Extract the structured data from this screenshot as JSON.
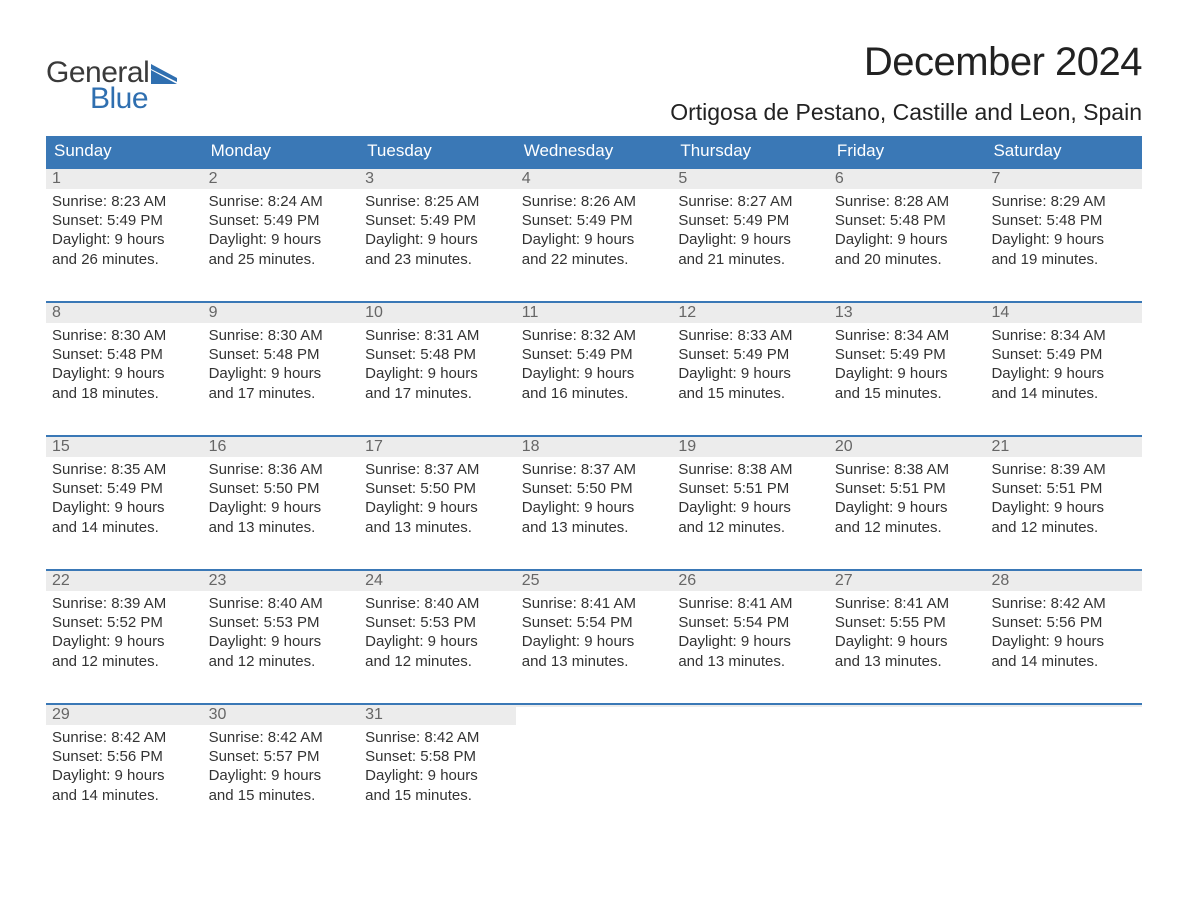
{
  "logo": {
    "general": "General",
    "blue": "Blue",
    "flag_color": "#2f6fb0"
  },
  "title": "December 2024",
  "location": "Ortigosa de Pestano, Castille and Leon, Spain",
  "colors": {
    "header_bg": "#3a78b6",
    "header_text": "#ffffff",
    "daynum_bg": "#ececec",
    "daynum_text": "#666666",
    "body_text": "#333333",
    "week_border": "#3a78b6",
    "page_bg": "#ffffff"
  },
  "typography": {
    "title_fontsize": 40,
    "location_fontsize": 23,
    "weekday_fontsize": 17,
    "daynum_fontsize": 16,
    "body_fontsize": 15
  },
  "weekdays": [
    "Sunday",
    "Monday",
    "Tuesday",
    "Wednesday",
    "Thursday",
    "Friday",
    "Saturday"
  ],
  "weeks": [
    [
      {
        "n": "1",
        "sunrise": "Sunrise: 8:23 AM",
        "sunset": "Sunset: 5:49 PM",
        "d1": "Daylight: 9 hours",
        "d2": "and 26 minutes."
      },
      {
        "n": "2",
        "sunrise": "Sunrise: 8:24 AM",
        "sunset": "Sunset: 5:49 PM",
        "d1": "Daylight: 9 hours",
        "d2": "and 25 minutes."
      },
      {
        "n": "3",
        "sunrise": "Sunrise: 8:25 AM",
        "sunset": "Sunset: 5:49 PM",
        "d1": "Daylight: 9 hours",
        "d2": "and 23 minutes."
      },
      {
        "n": "4",
        "sunrise": "Sunrise: 8:26 AM",
        "sunset": "Sunset: 5:49 PM",
        "d1": "Daylight: 9 hours",
        "d2": "and 22 minutes."
      },
      {
        "n": "5",
        "sunrise": "Sunrise: 8:27 AM",
        "sunset": "Sunset: 5:49 PM",
        "d1": "Daylight: 9 hours",
        "d2": "and 21 minutes."
      },
      {
        "n": "6",
        "sunrise": "Sunrise: 8:28 AM",
        "sunset": "Sunset: 5:48 PM",
        "d1": "Daylight: 9 hours",
        "d2": "and 20 minutes."
      },
      {
        "n": "7",
        "sunrise": "Sunrise: 8:29 AM",
        "sunset": "Sunset: 5:48 PM",
        "d1": "Daylight: 9 hours",
        "d2": "and 19 minutes."
      }
    ],
    [
      {
        "n": "8",
        "sunrise": "Sunrise: 8:30 AM",
        "sunset": "Sunset: 5:48 PM",
        "d1": "Daylight: 9 hours",
        "d2": "and 18 minutes."
      },
      {
        "n": "9",
        "sunrise": "Sunrise: 8:30 AM",
        "sunset": "Sunset: 5:48 PM",
        "d1": "Daylight: 9 hours",
        "d2": "and 17 minutes."
      },
      {
        "n": "10",
        "sunrise": "Sunrise: 8:31 AM",
        "sunset": "Sunset: 5:48 PM",
        "d1": "Daylight: 9 hours",
        "d2": "and 17 minutes."
      },
      {
        "n": "11",
        "sunrise": "Sunrise: 8:32 AM",
        "sunset": "Sunset: 5:49 PM",
        "d1": "Daylight: 9 hours",
        "d2": "and 16 minutes."
      },
      {
        "n": "12",
        "sunrise": "Sunrise: 8:33 AM",
        "sunset": "Sunset: 5:49 PM",
        "d1": "Daylight: 9 hours",
        "d2": "and 15 minutes."
      },
      {
        "n": "13",
        "sunrise": "Sunrise: 8:34 AM",
        "sunset": "Sunset: 5:49 PM",
        "d1": "Daylight: 9 hours",
        "d2": "and 15 minutes."
      },
      {
        "n": "14",
        "sunrise": "Sunrise: 8:34 AM",
        "sunset": "Sunset: 5:49 PM",
        "d1": "Daylight: 9 hours",
        "d2": "and 14 minutes."
      }
    ],
    [
      {
        "n": "15",
        "sunrise": "Sunrise: 8:35 AM",
        "sunset": "Sunset: 5:49 PM",
        "d1": "Daylight: 9 hours",
        "d2": "and 14 minutes."
      },
      {
        "n": "16",
        "sunrise": "Sunrise: 8:36 AM",
        "sunset": "Sunset: 5:50 PM",
        "d1": "Daylight: 9 hours",
        "d2": "and 13 minutes."
      },
      {
        "n": "17",
        "sunrise": "Sunrise: 8:37 AM",
        "sunset": "Sunset: 5:50 PM",
        "d1": "Daylight: 9 hours",
        "d2": "and 13 minutes."
      },
      {
        "n": "18",
        "sunrise": "Sunrise: 8:37 AM",
        "sunset": "Sunset: 5:50 PM",
        "d1": "Daylight: 9 hours",
        "d2": "and 13 minutes."
      },
      {
        "n": "19",
        "sunrise": "Sunrise: 8:38 AM",
        "sunset": "Sunset: 5:51 PM",
        "d1": "Daylight: 9 hours",
        "d2": "and 12 minutes."
      },
      {
        "n": "20",
        "sunrise": "Sunrise: 8:38 AM",
        "sunset": "Sunset: 5:51 PM",
        "d1": "Daylight: 9 hours",
        "d2": "and 12 minutes."
      },
      {
        "n": "21",
        "sunrise": "Sunrise: 8:39 AM",
        "sunset": "Sunset: 5:51 PM",
        "d1": "Daylight: 9 hours",
        "d2": "and 12 minutes."
      }
    ],
    [
      {
        "n": "22",
        "sunrise": "Sunrise: 8:39 AM",
        "sunset": "Sunset: 5:52 PM",
        "d1": "Daylight: 9 hours",
        "d2": "and 12 minutes."
      },
      {
        "n": "23",
        "sunrise": "Sunrise: 8:40 AM",
        "sunset": "Sunset: 5:53 PM",
        "d1": "Daylight: 9 hours",
        "d2": "and 12 minutes."
      },
      {
        "n": "24",
        "sunrise": "Sunrise: 8:40 AM",
        "sunset": "Sunset: 5:53 PM",
        "d1": "Daylight: 9 hours",
        "d2": "and 12 minutes."
      },
      {
        "n": "25",
        "sunrise": "Sunrise: 8:41 AM",
        "sunset": "Sunset: 5:54 PM",
        "d1": "Daylight: 9 hours",
        "d2": "and 13 minutes."
      },
      {
        "n": "26",
        "sunrise": "Sunrise: 8:41 AM",
        "sunset": "Sunset: 5:54 PM",
        "d1": "Daylight: 9 hours",
        "d2": "and 13 minutes."
      },
      {
        "n": "27",
        "sunrise": "Sunrise: 8:41 AM",
        "sunset": "Sunset: 5:55 PM",
        "d1": "Daylight: 9 hours",
        "d2": "and 13 minutes."
      },
      {
        "n": "28",
        "sunrise": "Sunrise: 8:42 AM",
        "sunset": "Sunset: 5:56 PM",
        "d1": "Daylight: 9 hours",
        "d2": "and 14 minutes."
      }
    ],
    [
      {
        "n": "29",
        "sunrise": "Sunrise: 8:42 AM",
        "sunset": "Sunset: 5:56 PM",
        "d1": "Daylight: 9 hours",
        "d2": "and 14 minutes."
      },
      {
        "n": "30",
        "sunrise": "Sunrise: 8:42 AM",
        "sunset": "Sunset: 5:57 PM",
        "d1": "Daylight: 9 hours",
        "d2": "and 15 minutes."
      },
      {
        "n": "31",
        "sunrise": "Sunrise: 8:42 AM",
        "sunset": "Sunset: 5:58 PM",
        "d1": "Daylight: 9 hours",
        "d2": "and 15 minutes."
      },
      {
        "empty": true
      },
      {
        "empty": true
      },
      {
        "empty": true
      },
      {
        "empty": true
      }
    ]
  ]
}
